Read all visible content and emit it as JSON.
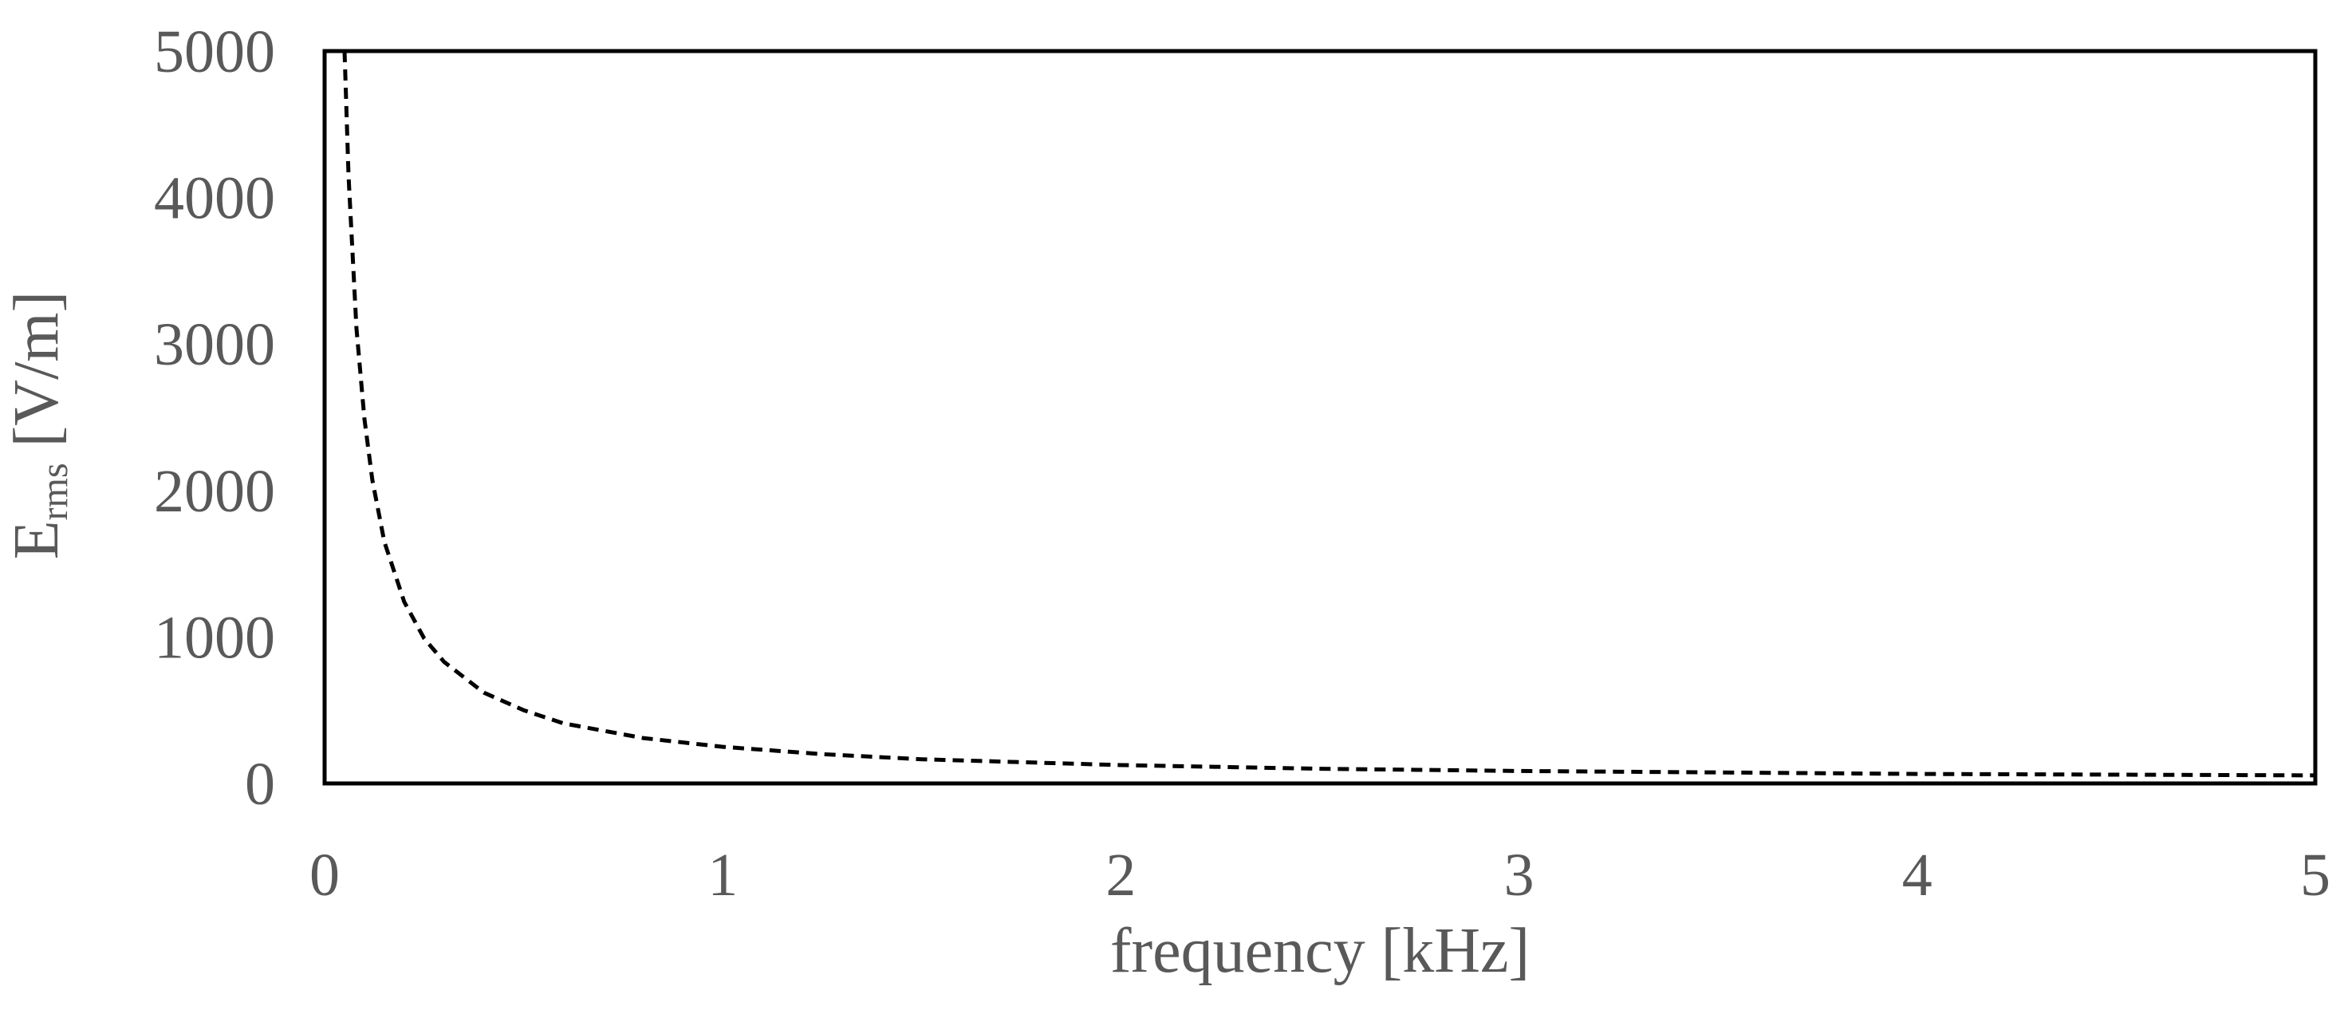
{
  "chart_data": {
    "type": "line",
    "title": "",
    "xlabel": "frequency [kHz]",
    "ylabel": {
      "main": "E",
      "subscript": "rms",
      "unit": " [V/m]"
    },
    "xlim": [
      0,
      5
    ],
    "ylim": [
      0,
      5000
    ],
    "xticks": [
      "0",
      "1",
      "2",
      "3",
      "4",
      "5"
    ],
    "yticks": [
      "0",
      "1000",
      "2000",
      "3000",
      "4000",
      "5000"
    ],
    "grid": false,
    "legend": "none",
    "series": [
      {
        "line_style": "dashed",
        "color": "#000000",
        "x": [
          0.05,
          0.06,
          0.08,
          0.1,
          0.12,
          0.15,
          0.2,
          0.25,
          0.3,
          0.4,
          0.5,
          0.6,
          0.8,
          1.0,
          1.25,
          1.5,
          2.0,
          2.5,
          3.0,
          3.5,
          4.0,
          4.5,
          5.0
        ],
        "y": [
          5000,
          4150,
          3110,
          2490,
          2070,
          1650,
          1240,
          990,
          830,
          620,
          500,
          410,
          310,
          250,
          200,
          165,
          125,
          100,
          85,
          75,
          65,
          60,
          55
        ]
      }
    ]
  },
  "colors": {
    "axis_text": "#595959",
    "frame": "#000000",
    "background": "#ffffff"
  }
}
